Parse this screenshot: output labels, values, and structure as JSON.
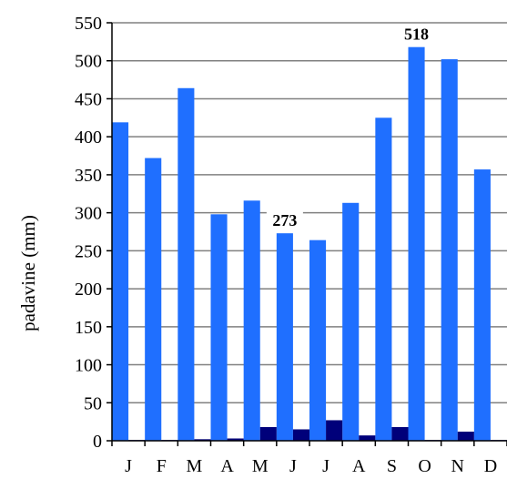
{
  "chart_data": {
    "type": "bar",
    "categories": [
      "J",
      "F",
      "M",
      "A",
      "M",
      "J",
      "J",
      "A",
      "S",
      "O",
      "N",
      "D"
    ],
    "series": [
      {
        "values": [
          419,
          372,
          464,
          298,
          316,
          273,
          264,
          313,
          425,
          518,
          502,
          357
        ]
      },
      {
        "values": [
          1,
          1,
          2,
          3,
          18,
          15,
          27,
          7,
          18,
          1,
          12,
          1
        ]
      }
    ],
    "ylabel": "padavine (mm)",
    "xlabel": "",
    "ylim": [
      0,
      550
    ],
    "yticks": [
      "0",
      "50",
      "100",
      "150",
      "200",
      "250",
      "300",
      "350",
      "400",
      "450",
      "500",
      "550"
    ],
    "grid": true,
    "data_labels": [
      {
        "category_index": 5,
        "series_index": 0,
        "text": "273"
      },
      {
        "category_index": 9,
        "series_index": 0,
        "text": "518"
      }
    ],
    "colors": {
      "series_0": "#1f6fff",
      "series_1": "#00007a",
      "grid": "#808080",
      "axis": "#000000"
    }
  }
}
